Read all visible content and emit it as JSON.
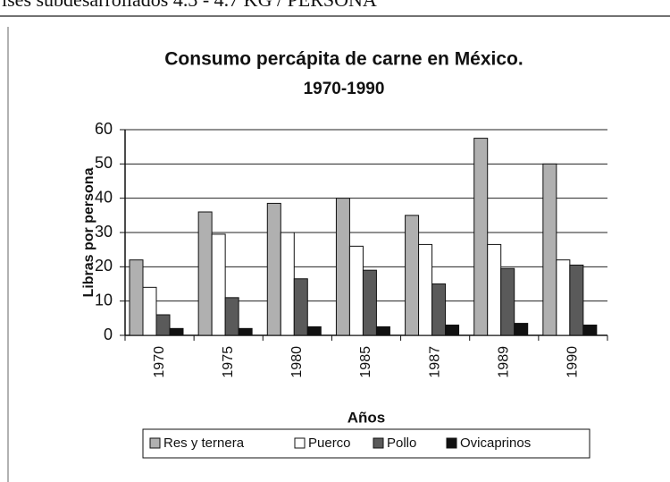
{
  "page_text": "ises subdesarrollados 4.3 - 4.7 KG / PERSONA",
  "chart_data": {
    "type": "bar",
    "title": "Consumo percápita de carne en México.",
    "subtitle": "1970-1990",
    "y_label": "Libras por persona",
    "x_label": "Años",
    "categories": [
      "1970",
      "1975",
      "1980",
      "1985",
      "1987",
      "1989",
      "1990"
    ],
    "series": [
      {
        "name": "Res y ternera",
        "color": "#b0b0b0",
        "values": [
          22,
          36,
          38.5,
          40,
          35,
          57.5,
          50
        ]
      },
      {
        "name": "Puerco",
        "color": "#ffffff",
        "values": [
          14,
          29.5,
          30,
          26,
          26.5,
          26.5,
          22
        ]
      },
      {
        "name": "Pollo",
        "color": "#5a5a5a",
        "values": [
          6,
          11,
          16.5,
          19,
          15,
          19.5,
          20.5
        ]
      },
      {
        "name": "Ovicaprinos",
        "color": "#111111",
        "values": [
          2,
          2,
          2.5,
          2.5,
          3,
          3.5,
          3
        ]
      }
    ],
    "ylim": [
      0,
      60
    ],
    "yticks": [
      0,
      10,
      20,
      30,
      40,
      50,
      60
    ],
    "grid": true,
    "legend": "bottom"
  }
}
